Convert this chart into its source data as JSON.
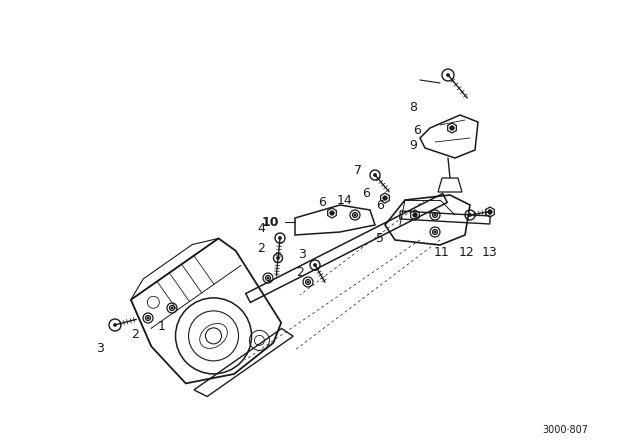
{
  "background_color": "#ffffff",
  "line_color": "#1a1a1a",
  "fig_width": 6.4,
  "fig_height": 4.48,
  "dpi": 100,
  "watermark": "3000·807"
}
